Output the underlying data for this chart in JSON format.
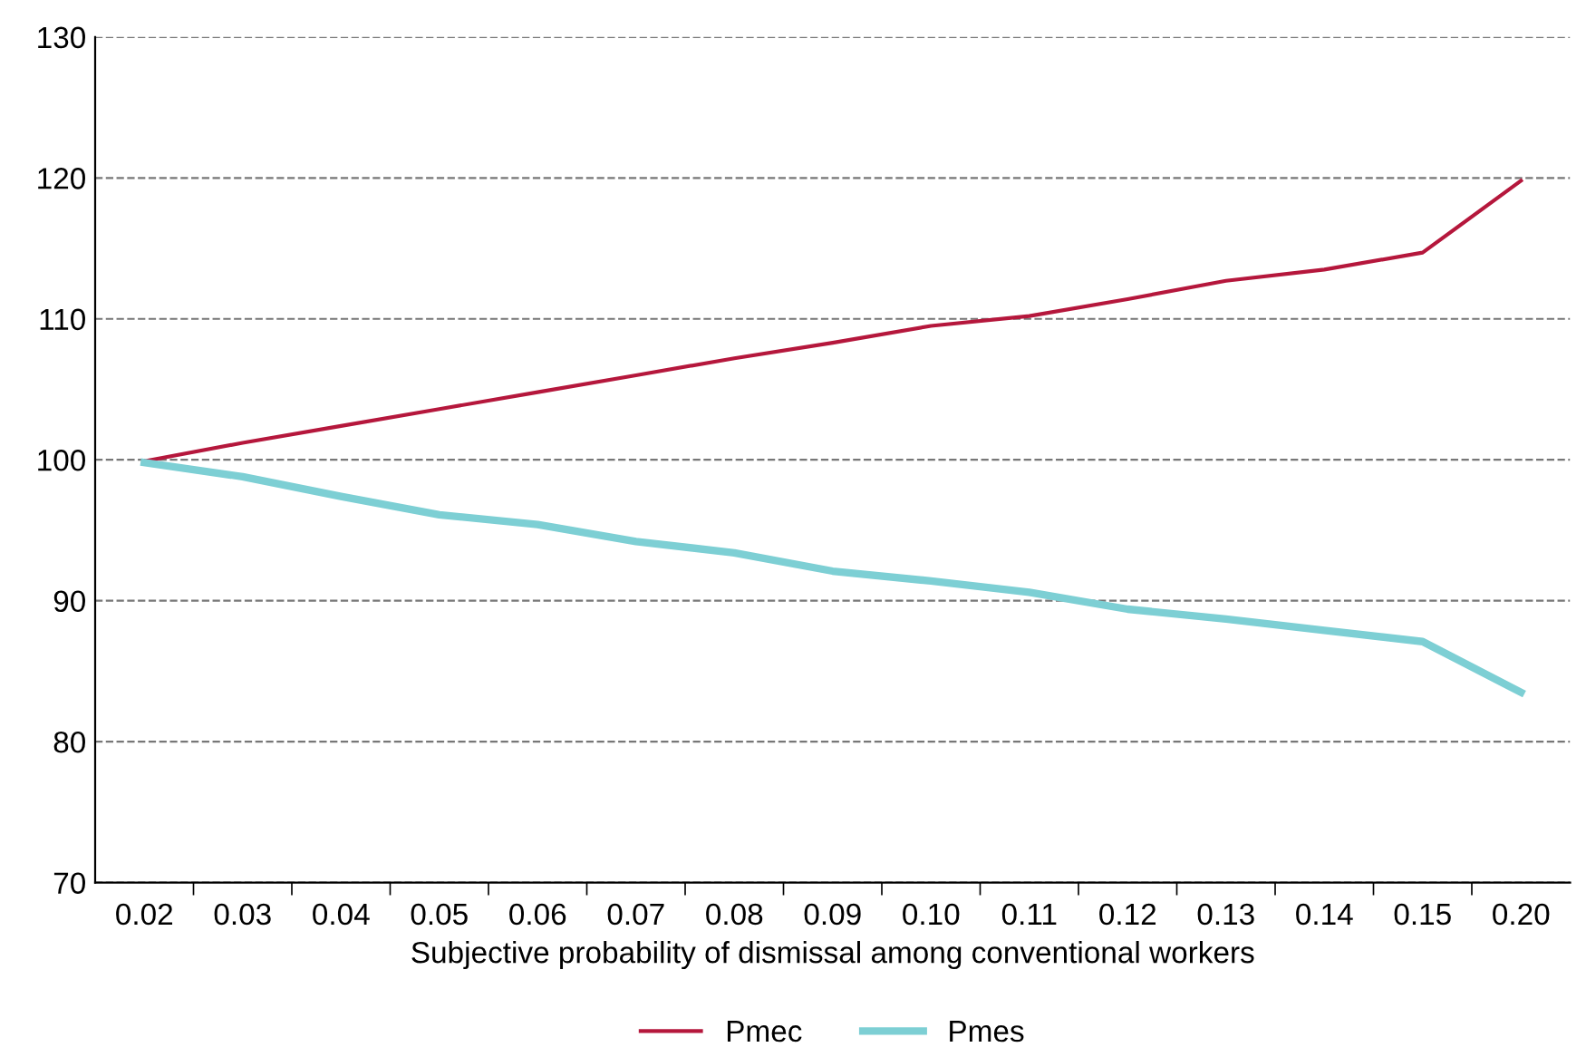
{
  "chart_data": {
    "type": "line",
    "xlabel": "Subjective probability of dismissal among conventional workers",
    "categories": [
      "0.02",
      "0.03",
      "0.04",
      "0.05",
      "0.06",
      "0.07",
      "0.08",
      "0.09",
      "0.10",
      "0.11",
      "0.12",
      "0.13",
      "0.14",
      "0.15",
      "0.20"
    ],
    "series": [
      {
        "name": "Pmec",
        "color": "#b5173c",
        "values": [
          99.9,
          101.2,
          102.4,
          103.6,
          104.8,
          106.0,
          107.2,
          108.3,
          109.5,
          110.2,
          111.4,
          112.7,
          113.5,
          114.7,
          119.8
        ]
      },
      {
        "name": "Pmes",
        "color": "#7dcfd4",
        "values": [
          99.8,
          98.8,
          97.4,
          96.1,
          95.4,
          94.2,
          93.4,
          92.1,
          91.4,
          90.6,
          89.4,
          88.7,
          87.9,
          87.1,
          83.5
        ]
      }
    ],
    "ylim": [
      70,
      130
    ],
    "yticks": [
      70,
      80,
      90,
      100,
      110,
      120,
      130
    ],
    "grid": "y",
    "legend": "bottom",
    "line_style": "solid"
  }
}
